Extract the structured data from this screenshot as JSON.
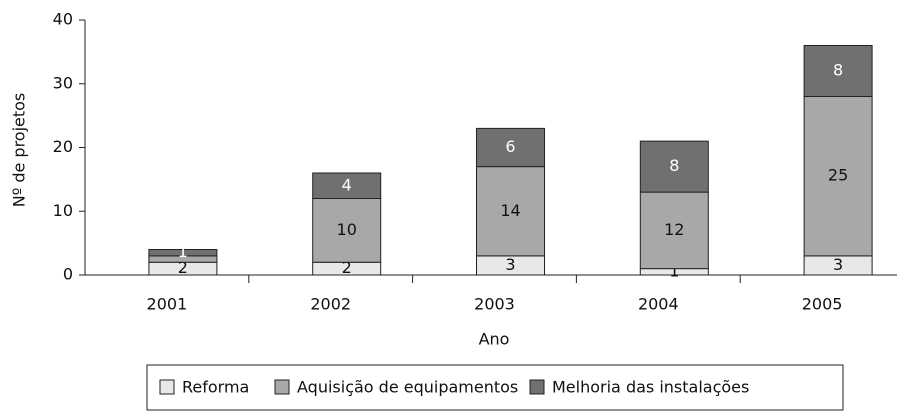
{
  "chart_data": {
    "type": "stacked_bar",
    "xlabel": "Ano",
    "ylabel": "Nº de projetos",
    "categories": [
      "2001",
      "2002",
      "2003",
      "2004",
      "2005"
    ],
    "series": [
      {
        "name": "Reforma",
        "color": "#e8e8e8",
        "values": [
          2,
          2,
          3,
          1,
          3
        ]
      },
      {
        "name": "Aquisição de equipamentos",
        "color": "#a8a8a8",
        "values": [
          1,
          10,
          14,
          12,
          25
        ],
        "value_labels": [
          null,
          "10",
          "14",
          "12",
          "25"
        ]
      },
      {
        "name": "Melhoria das instalações",
        "color": "#707070",
        "values": [
          1,
          4,
          6,
          8,
          8
        ]
      }
    ],
    "ylim": [
      0,
      40
    ],
    "yticks": [
      0,
      10,
      20,
      30,
      40
    ],
    "legend": "bottom"
  }
}
